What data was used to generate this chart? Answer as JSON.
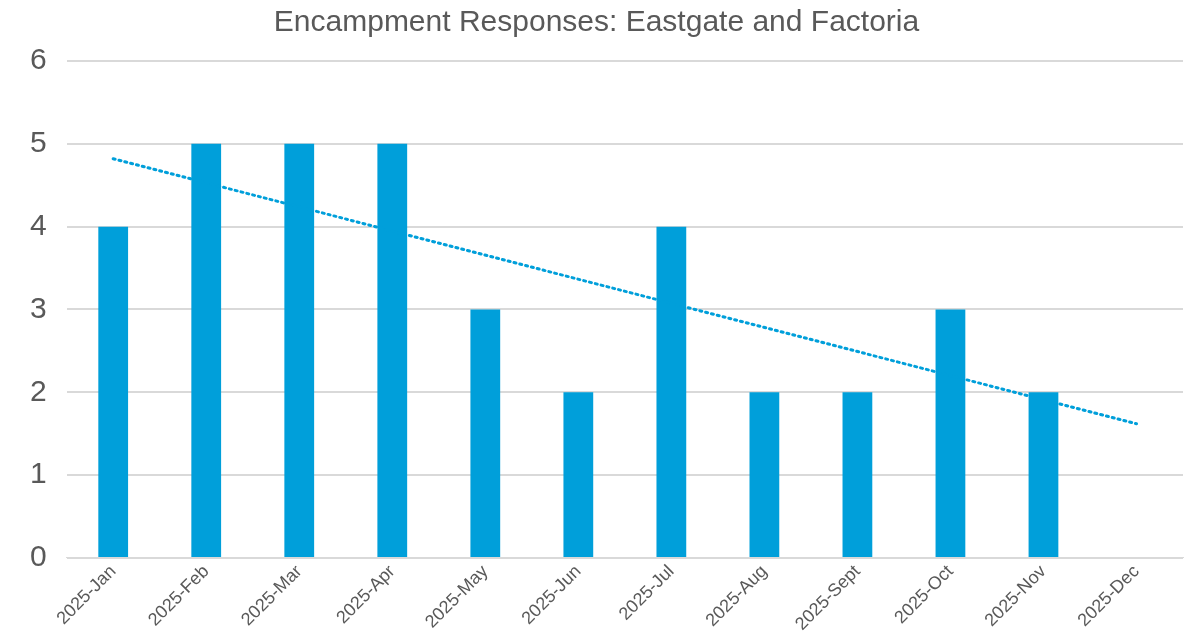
{
  "chart_data": {
    "type": "bar",
    "title": "Encampment Responses: Eastgate and Factoria",
    "categories": [
      "2025-Jan",
      "2025-Feb",
      "2025-Mar",
      "2025-Apr",
      "2025-May",
      "2025-Jun",
      "2025-Jul",
      "2025-Aug",
      "2025-Sept",
      "2025-Oct",
      "2025-Nov",
      "2025-Dec"
    ],
    "series": [
      {
        "color": "#009fda",
        "values": [
          4,
          5,
          5,
          5,
          3,
          2,
          4,
          2,
          2,
          3,
          2,
          null
        ]
      },
      {
        "type": "line",
        "color": "#009fda",
        "line_style": "dotted",
        "marker": "none",
        "x": [
          "2025-Jan",
          "2025-Dec"
        ],
        "values": [
          4.82,
          1.62
        ]
      }
    ],
    "ylim": [
      0,
      6
    ],
    "yticks": [
      0,
      1,
      2,
      3,
      4,
      5,
      6
    ],
    "grid": "y",
    "legend": false
  }
}
